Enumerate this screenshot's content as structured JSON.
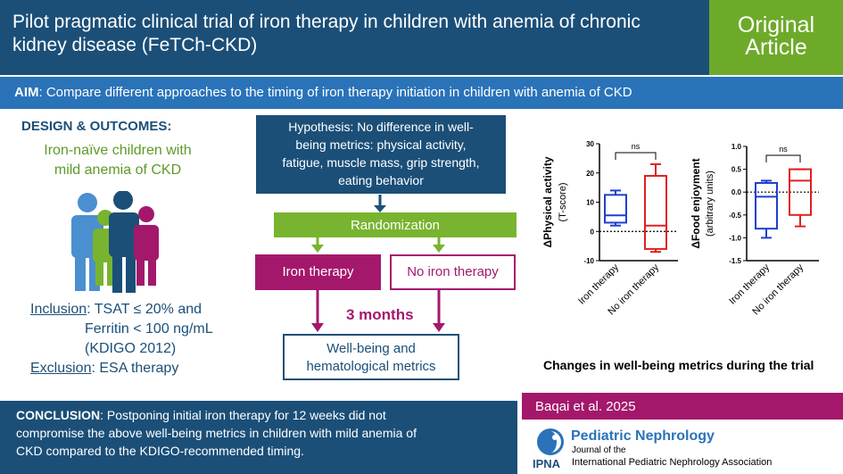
{
  "header": {
    "title": "Pilot pragmatic clinical trial of iron therapy in children with anemia of chronic kidney disease (FeTCh-CKD)",
    "badge_line1": "Original",
    "badge_line2": "Article"
  },
  "aim": {
    "label": "AIM",
    "text": ": Compare different approaches to the timing of iron therapy initiation in children with anemia of CKD"
  },
  "design": {
    "heading": "DESIGN & OUTCOMES",
    "heading_suffix": ":",
    "population_line1": "Iron-naïve children with",
    "population_line2": "mild anemia of CKD",
    "inclusion_label": "Inclusion",
    "inclusion_line1": ": TSAT ≤ 20% and",
    "inclusion_line2": "Ferritin < 100 ng/mL",
    "inclusion_line3": "(KDIGO 2012)",
    "exclusion_label": "Exclusion",
    "exclusion_text": ": ESA therapy",
    "people_colors": [
      "#4a8fd0",
      "#78b42f",
      "#1b4f78",
      "#a4186c"
    ]
  },
  "flow": {
    "hypothesis_line1": "Hypothesis: No difference in well-",
    "hypothesis_line2": "being metrics: physical activity,",
    "hypothesis_line3": "fatigue, muscle mass, grip strength,",
    "hypothesis_line4": "eating behavior",
    "randomization": "Randomization",
    "arm_iron": "Iron therapy",
    "arm_no_iron": "No iron therapy",
    "duration": "3 months",
    "outcome_line1": "Well-being and",
    "outcome_line2": "hematological metrics"
  },
  "chart_data": [
    {
      "type": "box",
      "ylabel": "ΔPhysical activity",
      "ylabel2": "(T-score)",
      "ylim": [
        -10,
        30
      ],
      "yticks": [
        "30",
        "20",
        "10",
        "0",
        "-10"
      ],
      "categories": [
        "Iron therapy",
        "No iron therapy"
      ],
      "significance": "ns",
      "series": [
        {
          "name": "Iron therapy",
          "color": "#1f3fd0",
          "min": 2,
          "q1": 3,
          "median": 5.5,
          "q3": 12.5,
          "max": 14
        },
        {
          "name": "No iron therapy",
          "color": "#e02020",
          "min": -7,
          "q1": -6,
          "median": 2,
          "q3": 19,
          "max": 23
        }
      ],
      "reference_line": 0
    },
    {
      "type": "box",
      "ylabel": "ΔFood enjoyment",
      "ylabel2": "(arbitrary units)",
      "ylim": [
        -1.5,
        1.0
      ],
      "yticks": [
        "1.0",
        "0.5",
        "0.0",
        "-0.5",
        "-1.0",
        "-1.5"
      ],
      "categories": [
        "Iron therapy",
        "No iron therapy"
      ],
      "significance": "ns",
      "series": [
        {
          "name": "Iron therapy",
          "color": "#1f3fd0",
          "min": -1.0,
          "q1": -0.8,
          "median": -0.1,
          "q3": 0.2,
          "max": 0.25
        },
        {
          "name": "No iron therapy",
          "color": "#e02020",
          "min": -0.75,
          "q1": -0.5,
          "median": 0.25,
          "q3": 0.5,
          "max": 0.5
        }
      ],
      "reference_line": 0
    }
  ],
  "charts_caption": "Changes in well-being metrics during the trial",
  "conclusion": {
    "label": "CONCLUSION",
    "line1": ": Postponing initial iron therapy for 12 weeks did not",
    "line2": "compromise the above well-being metrics in children with mild anemia of",
    "line3": "CKD compared to the KDIGO-recommended timing."
  },
  "citation": "Baqai et al. 2025",
  "journal": {
    "name": "Pediatric Nephrology",
    "journal_of": "Journal of the",
    "org": "International Pediatric Nephrology Association",
    "ipna": "IPNA"
  },
  "colors": {
    "navy": "#1b4f78",
    "blue": "#2a73b8",
    "green": "#78b42f",
    "magenta": "#a4186c"
  }
}
